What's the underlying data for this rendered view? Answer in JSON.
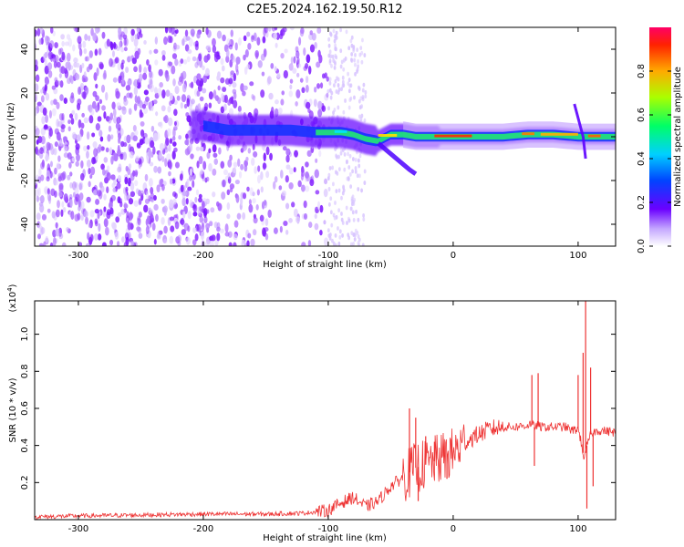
{
  "title": "C2E5.2024.162.19.50.R12",
  "chart_data": [
    {
      "type": "heatmap",
      "xlabel": "Height of straight line (km)",
      "ylabel": "Frequency (Hz)",
      "xlim": [
        -335,
        130
      ],
      "ylim": [
        -50,
        50
      ],
      "xticks": [
        -300,
        -200,
        -100,
        0,
        100
      ],
      "yticks": [
        -40,
        -20,
        0,
        20,
        40
      ],
      "ridge": [
        [
          -200,
          5
        ],
        [
          -190,
          4
        ],
        [
          -180,
          3
        ],
        [
          -165,
          3
        ],
        [
          -150,
          3
        ],
        [
          -130,
          3
        ],
        [
          -110,
          2
        ],
        [
          -100,
          2
        ],
        [
          -90,
          2
        ],
        [
          -80,
          1
        ],
        [
          -70,
          -1
        ],
        [
          -60,
          -2
        ],
        [
          -50,
          1
        ],
        [
          -40,
          1
        ],
        [
          -30,
          0
        ],
        [
          -20,
          0
        ],
        [
          -10,
          0
        ],
        [
          0,
          0
        ],
        [
          20,
          0
        ],
        [
          40,
          0
        ],
        [
          60,
          1
        ],
        [
          80,
          1
        ],
        [
          100,
          0
        ],
        [
          115,
          0
        ],
        [
          130,
          0
        ]
      ],
      "colorbar": {
        "label": "Normalized spectral amplitude",
        "range": [
          0,
          1
        ],
        "ticks": [
          "0.0",
          "0.2",
          "0.4",
          "0.6",
          "0.8"
        ]
      }
    },
    {
      "type": "line",
      "xlabel": "Height of straight line (km)",
      "ylabel": "SNR (10 * v/v)",
      "scale_label": "(x10",
      "scale_exp": "4",
      "scale_close": ")",
      "xlim": [
        -335,
        130
      ],
      "ylim": [
        0,
        11800
      ],
      "xticks": [
        -300,
        -200,
        -100,
        0,
        100
      ],
      "yticks": [
        "0.2",
        "0.4",
        "0.6",
        "0.8",
        "1.0"
      ],
      "series": [
        {
          "color": "#ee3333",
          "x": [
            -335,
            -300,
            -250,
            -200,
            -150,
            -120,
            -100,
            -90,
            -80,
            -70,
            -60,
            -50,
            -40,
            -30,
            -20,
            -10,
            0,
            10,
            20,
            30,
            40,
            50,
            60,
            62,
            65,
            67,
            70,
            80,
            90,
            95,
            100,
            103,
            105,
            107,
            110,
            115,
            120,
            130
          ],
          "y": [
            150,
            200,
            250,
            300,
            300,
            350,
            500,
            900,
            1200,
            700,
            1000,
            1800,
            2300,
            2800,
            3000,
            3300,
            3600,
            4200,
            4600,
            4900,
            5000,
            5000,
            5100,
            5200,
            5000,
            5100,
            5000,
            5000,
            5000,
            4800,
            4900,
            4000,
            3200,
            4000,
            4600,
            4800,
            4800,
            4700
          ]
        }
      ],
      "spikes": [
        [
          -35,
          6000
        ],
        [
          -30,
          5500
        ],
        [
          -28,
          1000
        ],
        [
          -22,
          4500
        ],
        [
          -15,
          4200
        ],
        [
          -5,
          2200
        ],
        [
          63,
          7800
        ],
        [
          65,
          2900
        ],
        [
          68,
          7900
        ],
        [
          100,
          7800
        ],
        [
          104,
          9000
        ],
        [
          106,
          11800
        ],
        [
          107,
          600
        ],
        [
          110,
          8200
        ],
        [
          112,
          1800
        ]
      ]
    }
  ]
}
